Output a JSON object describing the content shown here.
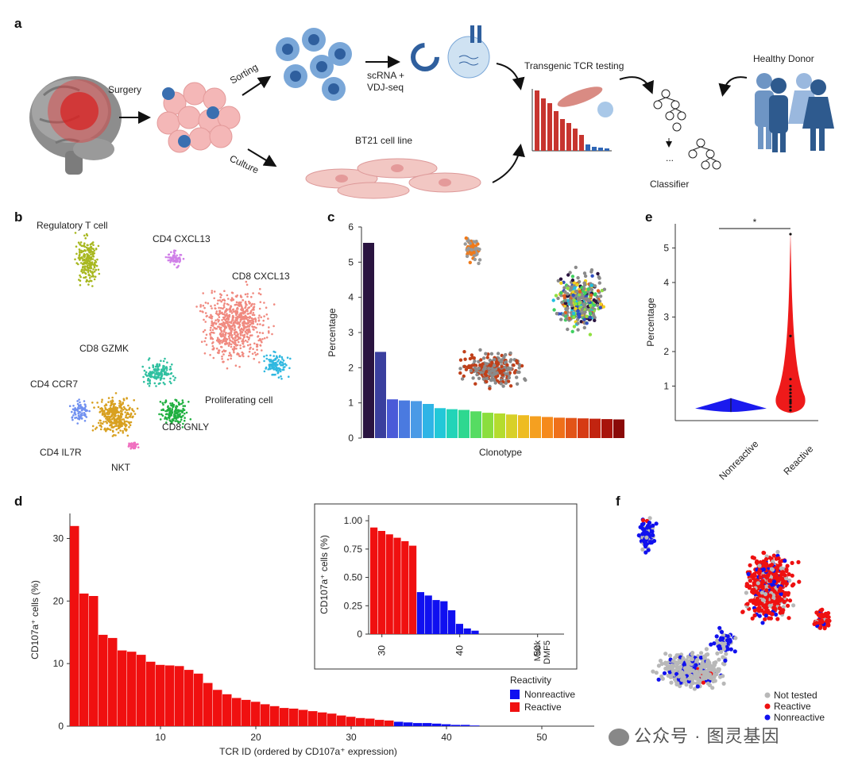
{
  "panel_a": {
    "letter": "a",
    "surgery": "Surgery",
    "sorting": "Sorting",
    "culture": "Culture",
    "scrna": "scRNA +",
    "vdj": "VDJ-seq",
    "bt21": "BT21 cell line",
    "tcr_testing": "Transgenic TCR testing",
    "healthy_donor": "Healthy Donor",
    "classifier": "Classifier",
    "ellipsis": "..."
  },
  "panel_b": {
    "letter": "b",
    "clusters": [
      "Regulatory T cell",
      "CD4 CXCL13",
      "CD8 CXCL13",
      "CD8 GZMK",
      "Proliferating cell",
      "CD4 CCR7",
      "CD8 GNLY",
      "CD4 IL7R",
      "NKT"
    ]
  },
  "panel_c": {
    "letter": "c",
    "chart_data": {
      "type": "bar",
      "title": "",
      "xlabel": "Clonotype",
      "ylabel": "Percentage",
      "ylim": [
        0,
        6
      ],
      "yticks": [
        "0",
        "1",
        "2",
        "3",
        "4",
        "5",
        "6"
      ],
      "values": [
        5.55,
        2.45,
        1.1,
        1.07,
        1.05,
        0.97,
        0.85,
        0.82,
        0.8,
        0.76,
        0.72,
        0.7,
        0.67,
        0.65,
        0.62,
        0.6,
        0.58,
        0.57,
        0.56,
        0.55,
        0.54,
        0.53
      ],
      "colors": [
        "#2a1440",
        "#3a3f9e",
        "#4a5ad8",
        "#4a7ae0",
        "#4a9ae6",
        "#2fb4e6",
        "#22c8d8",
        "#22d4b8",
        "#2ed890",
        "#56dc62",
        "#8ade3e",
        "#b4dc2e",
        "#d8d028",
        "#eebc22",
        "#f5a020",
        "#f58a1c",
        "#ef701a",
        "#e25418",
        "#d63a14",
        "#c22410",
        "#a8140c",
        "#8a0a08"
      ]
    }
  },
  "panel_e": {
    "letter": "e",
    "chart_data": {
      "type": "violin",
      "ylabel": "Percentage",
      "ylim": [
        0,
        5.7
      ],
      "yticks": [
        "1",
        "2",
        "3",
        "4",
        "5"
      ],
      "categories": [
        "Nonreactive",
        "Reactive"
      ],
      "significance": "*"
    }
  },
  "panel_d": {
    "letter": "d",
    "chart_data": {
      "type": "bar",
      "xlabel": "TCR ID (ordered by CD107a⁺ expression)",
      "ylabel": "CD107a⁺ cells (%)",
      "xticks": [
        "10",
        "20",
        "30",
        "40",
        "50"
      ],
      "yticks": [
        "0",
        "10",
        "20",
        "30"
      ],
      "ylim": [
        0,
        34
      ],
      "values": [
        32,
        21.2,
        20.8,
        14.6,
        14.1,
        12.1,
        11.9,
        11.4,
        10.3,
        9.8,
        9.7,
        9.6,
        9.0,
        8.4,
        6.9,
        5.8,
        5.1,
        4.5,
        4.2,
        3.9,
        3.5,
        3.2,
        2.9,
        2.8,
        2.6,
        2.4,
        2.2,
        2.0,
        1.7,
        1.5,
        1.3,
        1.2,
        1.0,
        0.9,
        0.7,
        0.6,
        0.5,
        0.5,
        0.4,
        0.3,
        0.2,
        0.2,
        0.1,
        0.0,
        0.0,
        0.0,
        0.0,
        0.0,
        0.0,
        0.0,
        0.0,
        0.0,
        0.0
      ],
      "reactive_count": 34,
      "legend_title": "Reactivity",
      "legend": [
        {
          "name": "Nonreactive",
          "color": "#1010f0"
        },
        {
          "name": "Reactive",
          "color": "#f01010"
        }
      ]
    },
    "inset": {
      "ylabel": "CD107a⁺ cells (%)",
      "yticks": [
        "0",
        "0.25",
        "0.50",
        "0.75",
        "1.00"
      ],
      "xticks": [
        "30",
        "40",
        "50"
      ],
      "controls": [
        "Mock",
        "DMF5"
      ],
      "ylim": [
        0,
        1.05
      ],
      "start_id": 29,
      "values": [
        0.94,
        0.91,
        0.88,
        0.85,
        0.82,
        0.78,
        0.37,
        0.34,
        0.3,
        0.29,
        0.21,
        0.09,
        0.05,
        0.03
      ]
    }
  },
  "panel_f": {
    "letter": "f",
    "legend": [
      {
        "name": "Not tested",
        "color": "#b8b8b8"
      },
      {
        "name": "Reactive",
        "color": "#ee1111"
      },
      {
        "name": "Nonreactive",
        "color": "#1111ee"
      }
    ]
  },
  "watermark": "公众号 · 图灵基因"
}
